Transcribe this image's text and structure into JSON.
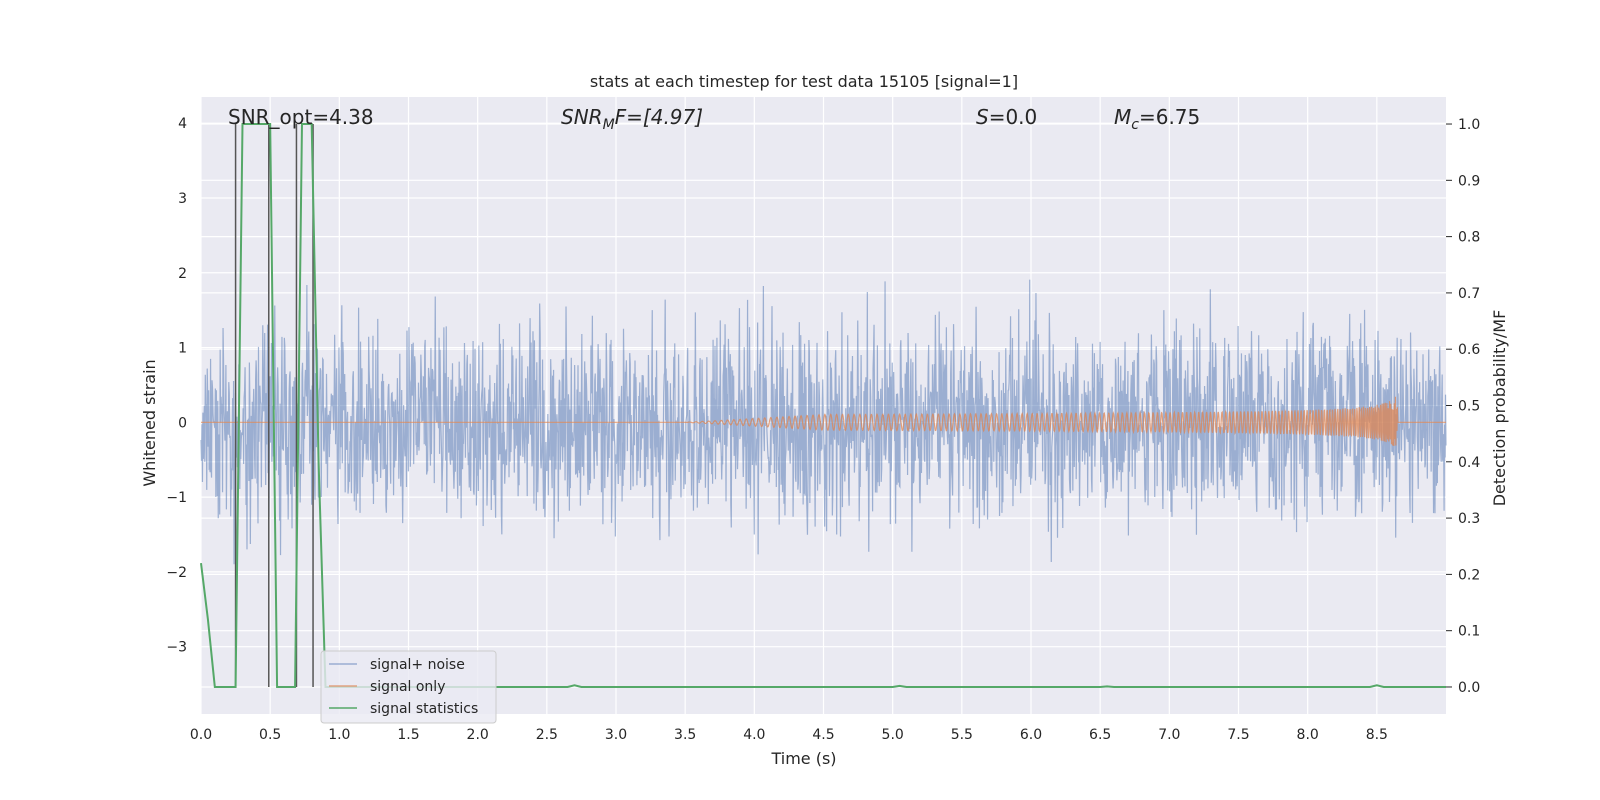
{
  "chart_data": {
    "type": "line",
    "title": "stats at each timestep for test data 15105 [signal=1]",
    "xlabel": "Time (s)",
    "ylabel_left": "Whitened strain",
    "ylabel_right": "Detection probability/MF",
    "xlim": [
      0.0,
      9.0
    ],
    "ylim_left": [
      -3.9,
      4.35
    ],
    "ylim_right": [
      -0.048,
      1.048
    ],
    "x_ticks": [
      "0.0",
      "0.5",
      "1.0",
      "1.5",
      "2.0",
      "2.5",
      "3.0",
      "3.5",
      "4.0",
      "4.5",
      "5.0",
      "5.5",
      "6.0",
      "6.5",
      "7.0",
      "7.5",
      "8.0",
      "8.5"
    ],
    "y_ticks_left": [
      "4",
      "3",
      "2",
      "1",
      "0",
      "−1",
      "−2",
      "−3"
    ],
    "y_ticks_right": [
      "1.0",
      "0.9",
      "0.8",
      "0.7",
      "0.6",
      "0.5",
      "0.4",
      "0.3",
      "0.2",
      "0.1",
      "0.0"
    ],
    "grid": true,
    "legend_position": "lower-left",
    "annotations": {
      "snr_opt": "SNR_opt=4.38",
      "snr_mf_main": "SNR",
      "snr_mf_sub": "M",
      "snr_mf_rest": "F=[4.97]",
      "s_main": "S",
      "s_rest": "=0.0",
      "mc_main": "M",
      "mc_sub": "c",
      "mc_rest": "=6.75"
    },
    "series": [
      {
        "name": "signal+ noise",
        "color": "#4c72b0",
        "axis": "left",
        "description_type": "whitened noise",
        "envelope_abs_max": 4.0
      },
      {
        "name": "signal only",
        "color": "#dd8452",
        "axis": "left",
        "chirp_end_time": 8.65,
        "chirp_peak_amplitude": 0.4
      },
      {
        "name": "signal statistics",
        "color": "#55a868",
        "axis": "right",
        "x": [
          0.0,
          0.05,
          0.1,
          0.25,
          0.3,
          0.5,
          0.55,
          0.6,
          0.68,
          0.73,
          0.8,
          0.85,
          0.9,
          2.65,
          2.7,
          2.75,
          5.0,
          5.05,
          5.1,
          6.5,
          6.55,
          6.6,
          8.45,
          8.5,
          8.55,
          9.0
        ],
        "y": [
          0.22,
          0.12,
          0.0,
          0.0,
          1.0,
          1.0,
          0.0,
          0.0,
          0.0,
          1.0,
          1.0,
          0.4,
          0.0,
          0.0,
          0.003,
          0.0,
          0.0,
          0.002,
          0.0,
          0.0,
          0.001,
          0.0,
          0.0,
          0.003,
          0.0,
          0.0
        ]
      }
    ],
    "vertical_markers": [
      0.25,
      0.49,
      0.69,
      0.81
    ]
  }
}
